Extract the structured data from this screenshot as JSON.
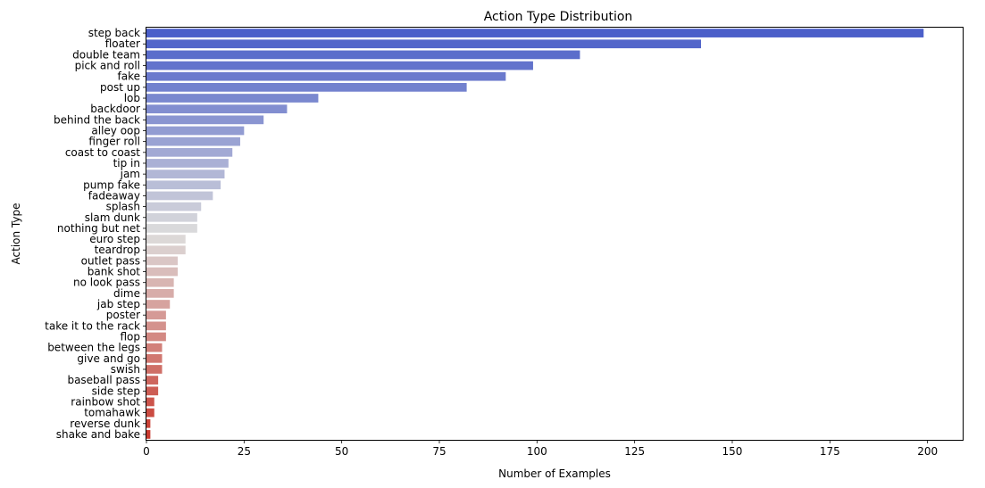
{
  "chart_data": {
    "type": "bar",
    "orientation": "horizontal",
    "title": "Action Type Distribution",
    "xlabel": "Number of Examples",
    "ylabel": "Action Type",
    "xlim": [
      0,
      209
    ],
    "xticks": [
      0,
      25,
      50,
      75,
      100,
      125,
      150,
      175,
      200
    ],
    "grid": false,
    "legend": "none",
    "palette": "coolwarm",
    "palette_start": "#4b5fc9",
    "palette_mid": "#dddcdc",
    "palette_end": "#c93a2f",
    "categories": [
      "step back",
      "floater",
      "double team",
      "pick and roll",
      "fake",
      "post up",
      "lob",
      "backdoor",
      "behind the back",
      "alley oop",
      "finger roll",
      "coast to coast",
      "tip in",
      "jam",
      "pump fake",
      "fadeaway",
      "splash",
      "slam dunk",
      "nothing but net",
      "euro step",
      "teardrop",
      "outlet pass",
      "bank shot",
      "no look pass",
      "dime",
      "jab step",
      "poster",
      "take it to the rack",
      "flop",
      "between the legs",
      "give and go",
      "swish",
      "baseball pass",
      "side step",
      "rainbow shot",
      "tomahawk",
      "reverse dunk",
      "shake and bake"
    ],
    "values": [
      199,
      142,
      111,
      99,
      92,
      82,
      44,
      36,
      30,
      25,
      24,
      22,
      21,
      20,
      19,
      17,
      14,
      13,
      13,
      10,
      10,
      8,
      8,
      7,
      7,
      6,
      5,
      5,
      5,
      4,
      4,
      4,
      3,
      3,
      2,
      2,
      1,
      1
    ]
  }
}
